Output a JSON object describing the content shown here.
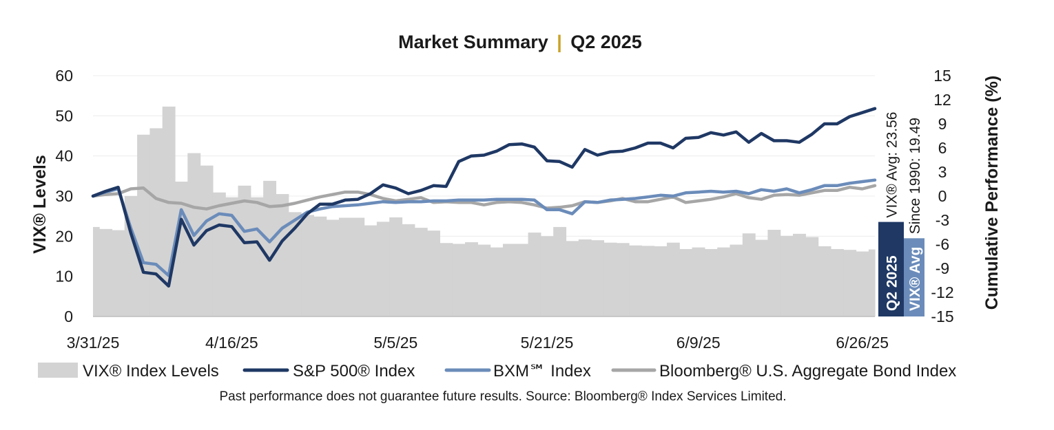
{
  "chart_data": {
    "type": "bar+line",
    "title": "Market Summary",
    "title_separator": "|",
    "title_suffix": "Q2 2025",
    "y_left": {
      "label": "VIX® Levels",
      "min": 0,
      "max": 60,
      "ticks": [
        0,
        10,
        20,
        30,
        40,
        50,
        60
      ]
    },
    "y_right": {
      "label": "Cumulative Performance (%)",
      "min": -15,
      "max": 15,
      "ticks": [
        -15,
        -12,
        -9,
        -6,
        -3,
        0,
        3,
        6,
        9,
        12,
        15
      ]
    },
    "x_tick_labels": [
      {
        "label": "3/31/25",
        "index": 0
      },
      {
        "label": "4/16/25",
        "index": 11
      },
      {
        "label": "5/5/25",
        "index": 24
      },
      {
        "label": "5/21/25",
        "index": 36
      },
      {
        "label": "6/9/25",
        "index": 48
      },
      {
        "label": "6/26/25",
        "index": 61
      }
    ],
    "vix": {
      "name": "VIX® Index Levels",
      "color": "#d3d3d3",
      "values": [
        22.3,
        21.8,
        21.5,
        30.0,
        45.3,
        46.9,
        52.3,
        33.6,
        40.7,
        37.6,
        30.9,
        29.7,
        32.6,
        29.7,
        33.8,
        30.5,
        26.0,
        25.3,
        24.9,
        24.1,
        24.6,
        24.6,
        22.7,
        23.6,
        24.7,
        23.0,
        22.1,
        21.4,
        18.3,
        18.1,
        18.5,
        17.9,
        17.2,
        18.1,
        18.1,
        20.9,
        20.0,
        22.3,
        18.8,
        19.2,
        19.0,
        18.4,
        18.3,
        17.7,
        17.6,
        17.5,
        18.4,
        16.8,
        17.2,
        16.8,
        17.2,
        17.9,
        20.7,
        19.1,
        21.6,
        20.1,
        20.6,
        19.8,
        17.5,
        16.8,
        16.6,
        16.2,
        16.7
      ]
    },
    "series": [
      {
        "name": "S&P 500® Index",
        "color": "#1f3864",
        "values": [
          0,
          0.6,
          1.1,
          -4.6,
          -9.5,
          -9.7,
          -11.2,
          -2.9,
          -6.1,
          -4.3,
          -3.6,
          -3.8,
          -5.8,
          -5.7,
          -8.0,
          -5.6,
          -4.0,
          -2.2,
          -1.0,
          -1.0,
          -0.5,
          -0.4,
          0.3,
          1.4,
          1.0,
          0.3,
          0.7,
          1.3,
          1.2,
          4.3,
          5.0,
          5.1,
          5.6,
          6.4,
          6.5,
          6.1,
          4.4,
          4.3,
          3.6,
          5.8,
          5.1,
          5.5,
          5.6,
          6.0,
          6.6,
          6.6,
          6.0,
          7.2,
          7.3,
          7.9,
          7.6,
          8.0,
          6.7,
          7.8,
          6.9,
          6.9,
          6.7,
          7.7,
          9.0,
          9.0,
          9.9,
          10.4,
          10.9
        ]
      },
      {
        "name": "BXM℠ Index",
        "color": "#6b8cba",
        "values": [
          0,
          0.5,
          0.9,
          -4.0,
          -8.3,
          -8.5,
          -9.9,
          -1.7,
          -4.9,
          -3.1,
          -2.2,
          -2.4,
          -4.4,
          -4.1,
          -5.7,
          -4.0,
          -3.0,
          -2.0,
          -1.6,
          -1.3,
          -1.2,
          -1.1,
          -0.9,
          -0.7,
          -0.8,
          -0.7,
          -0.7,
          -0.6,
          -0.6,
          -0.5,
          -0.5,
          -0.5,
          -0.4,
          -0.4,
          -0.4,
          -0.5,
          -1.7,
          -1.7,
          -2.2,
          -0.7,
          -0.8,
          -0.5,
          -0.4,
          -0.3,
          -0.1,
          0.1,
          0.0,
          0.4,
          0.5,
          0.6,
          0.5,
          0.6,
          0.3,
          0.8,
          0.6,
          0.9,
          0.4,
          0.8,
          1.3,
          1.3,
          1.6,
          1.8,
          2.0
        ]
      },
      {
        "name": "Bloomberg® U.S. Aggregate Bond Index",
        "color": "#a6a6a6",
        "values": [
          0,
          0.2,
          0.3,
          0.9,
          1.0,
          -0.3,
          -0.8,
          -0.9,
          -1.4,
          -1.6,
          -1.2,
          -0.9,
          -0.6,
          -0.8,
          -1.3,
          -1.2,
          -0.9,
          -0.5,
          -0.1,
          0.2,
          0.5,
          0.5,
          0.2,
          -0.3,
          -0.6,
          -0.4,
          -0.2,
          -0.8,
          -0.7,
          -0.8,
          -0.8,
          -1.1,
          -0.8,
          -0.7,
          -0.8,
          -1.1,
          -1.5,
          -1.4,
          -1.2,
          -0.7,
          -0.8,
          -0.6,
          -0.3,
          -0.7,
          -0.7,
          -0.4,
          -0.1,
          -0.8,
          -0.6,
          -0.4,
          -0.1,
          0.3,
          -0.2,
          -0.4,
          0.1,
          0.2,
          0.1,
          0.4,
          0.7,
          0.7,
          1.1,
          0.9,
          1.3
        ]
      }
    ],
    "averages": [
      {
        "bar_label": "Q2 2025",
        "text_label": "VIX® Avg: 23.56",
        "value": 23.56,
        "color": "#1f3864"
      },
      {
        "bar_label": "VIX® Avg",
        "text_label": "Since 1990: 19.49",
        "value": 19.49,
        "color": "#6b8cba"
      }
    ],
    "legend": {
      "placement": "bottom",
      "items": [
        "VIX® Index Levels",
        "S&P 500® Index",
        "BXM℠ Index",
        "Bloomberg® U.S. Aggregate Bond Index"
      ]
    },
    "footnote": "Past performance does not guarantee future results. Source: Bloomberg® Index Services Limited."
  }
}
